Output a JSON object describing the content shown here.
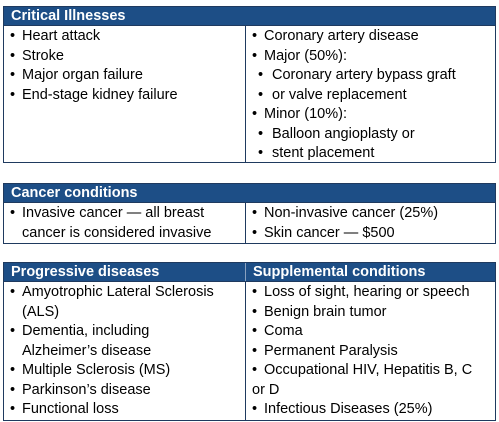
{
  "critical": {
    "title": "Critical Illnesses",
    "left": [
      "Heart attack",
      "Stroke",
      "Major organ failure",
      "End-stage kidney failure"
    ],
    "right": {
      "item1": "Coronary artery disease",
      "item2": "Major (50%):",
      "sub1_line1": "Coronary artery bypass graft",
      "sub1_line2": "or valve replacement",
      "item3": "Minor (10%):",
      "sub2_line1": "Balloon angioplasty or",
      "sub2_line2": "stent placement"
    }
  },
  "cancer": {
    "title": "Cancer conditions",
    "left_line1": "Invasive cancer — all breast",
    "left_line2": "cancer is considered invasive",
    "right": [
      "Non-invasive cancer (25%)",
      "Skin cancer — $500"
    ]
  },
  "progressive": {
    "title": "Progressive diseases",
    "items": {
      "als_line1": "Amyotrophic Lateral Sclerosis",
      "als_line2": "(ALS)",
      "dementia_line1": "Dementia, including",
      "dementia_line2": "Alzheimer’s disease",
      "ms": "Multiple Sclerosis (MS)",
      "parkinsons": "Parkinson’s disease",
      "functional": "Functional loss"
    }
  },
  "supplemental": {
    "title": "Supplemental conditions",
    "items": {
      "sight": "Loss of sight, hearing or speech",
      "tumor": "Benign brain tumor",
      "coma": "Coma",
      "paralysis": "Permanent Paralysis",
      "hiv_line1": "Occupational HIV, Hepatitis B, C",
      "hiv_line2": "or D",
      "infectious": "Infectious Diseases (25%)"
    }
  },
  "bullet": "•"
}
